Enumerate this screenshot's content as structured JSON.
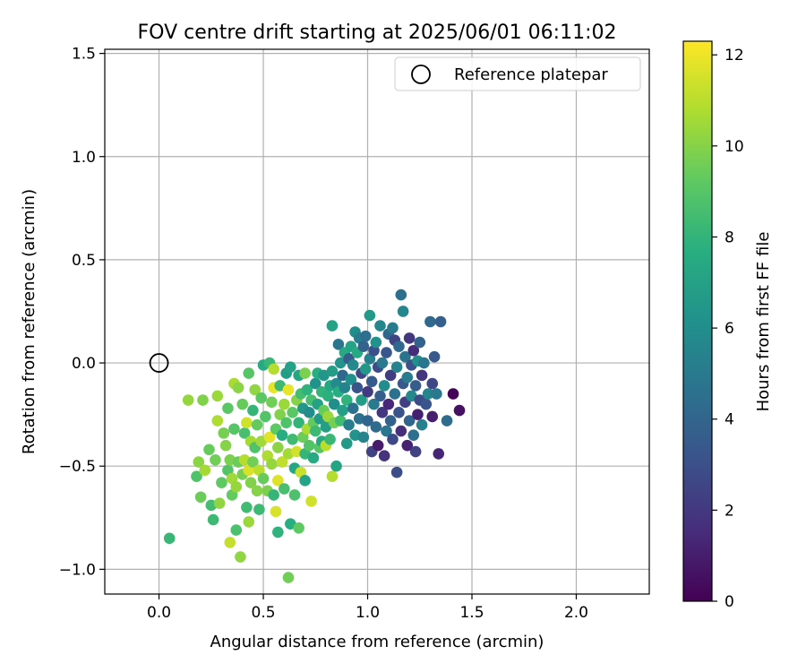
{
  "chart_data": {
    "type": "scatter",
    "title": "FOV centre drift starting at 2025/06/01 06:11:02",
    "xlabel": "Angular distance from reference (arcmin)",
    "ylabel": "Rotation from reference (arcmin)",
    "xlim": [
      -0.26,
      2.35
    ],
    "ylim": [
      -1.12,
      1.52
    ],
    "xticks": [
      0.0,
      0.5,
      1.0,
      1.5,
      2.0
    ],
    "xtick_labels": [
      "0.0",
      "0.5",
      "1.0",
      "1.5",
      "2.0"
    ],
    "yticks": [
      -1.0,
      -0.5,
      0.0,
      0.5,
      1.0,
      1.5
    ],
    "ytick_labels": [
      "−1.0",
      "−0.5",
      "0.0",
      "0.5",
      "1.0",
      "1.5"
    ],
    "grid": true,
    "legend": {
      "position": "top-right",
      "entries": [
        "Reference platepar"
      ]
    },
    "reference": {
      "x": 0.0,
      "y": 0.0
    },
    "colorbar": {
      "label": "Hours from first FF file",
      "min": 0,
      "max": 12.3,
      "ticks": [
        0,
        2,
        4,
        6,
        8,
        10,
        12
      ],
      "colormap": "viridis"
    },
    "points": [
      [
        0.05,
        -0.85,
        8.2
      ],
      [
        0.14,
        -0.18,
        10.3
      ],
      [
        0.18,
        -0.55,
        8.8
      ],
      [
        0.19,
        -0.48,
        10.1
      ],
      [
        0.2,
        -0.65,
        9.5
      ],
      [
        0.21,
        -0.18,
        9.9
      ],
      [
        0.22,
        -0.52,
        10.6
      ],
      [
        0.24,
        -0.42,
        9.4
      ],
      [
        0.25,
        -0.69,
        8.5
      ],
      [
        0.26,
        -0.76,
        8.3
      ],
      [
        0.27,
        -0.47,
        9.6
      ],
      [
        0.28,
        -0.28,
        10.8
      ],
      [
        0.28,
        -0.16,
        10.4
      ],
      [
        0.29,
        -0.68,
        10.2
      ],
      [
        0.3,
        -0.58,
        9.2
      ],
      [
        0.31,
        -0.34,
        9.7
      ],
      [
        0.32,
        -0.4,
        10.0
      ],
      [
        0.33,
        -0.52,
        8.9
      ],
      [
        0.33,
        -0.22,
        9.1
      ],
      [
        0.34,
        -0.87,
        11.2
      ],
      [
        0.34,
        -0.47,
        9.8
      ],
      [
        0.35,
        -0.64,
        9.3
      ],
      [
        0.35,
        -0.56,
        10.5
      ],
      [
        0.36,
        -0.1,
        10.7
      ],
      [
        0.36,
        -0.32,
        9.0
      ],
      [
        0.37,
        -0.81,
        8.7
      ],
      [
        0.37,
        -0.6,
        10.3
      ],
      [
        0.38,
        -0.48,
        9.5
      ],
      [
        0.38,
        -0.12,
        10.1
      ],
      [
        0.39,
        -0.94,
        10.2
      ],
      [
        0.4,
        -0.54,
        9.7
      ],
      [
        0.4,
        -0.2,
        9.4
      ],
      [
        0.41,
        -0.34,
        8.6
      ],
      [
        0.41,
        -0.47,
        10.9
      ],
      [
        0.42,
        -0.7,
        8.4
      ],
      [
        0.42,
        -0.29,
        11.4
      ],
      [
        0.43,
        -0.77,
        10.4
      ],
      [
        0.43,
        -0.52,
        11.6
      ],
      [
        0.43,
        -0.05,
        9.0
      ],
      [
        0.44,
        -0.38,
        10.6
      ],
      [
        0.44,
        -0.58,
        9.9
      ],
      [
        0.45,
        -0.23,
        8.1
      ],
      [
        0.45,
        -0.48,
        9.6
      ],
      [
        0.46,
        -0.13,
        10.2
      ],
      [
        0.46,
        -0.41,
        8.8
      ],
      [
        0.47,
        -0.62,
        10.0
      ],
      [
        0.47,
        -0.3,
        9.3
      ],
      [
        0.48,
        -0.71,
        8.3
      ],
      [
        0.48,
        -0.52,
        11.0
      ],
      [
        0.49,
        -0.17,
        9.1
      ],
      [
        0.49,
        -0.38,
        10.5
      ],
      [
        0.5,
        -0.01,
        7.5
      ],
      [
        0.5,
        -0.56,
        9.4
      ],
      [
        0.51,
        -0.26,
        8.9
      ],
      [
        0.52,
        -0.45,
        10.8
      ],
      [
        0.52,
        -0.62,
        9.8
      ],
      [
        0.53,
        -0.36,
        11.8
      ],
      [
        0.53,
        0.0,
        8.2
      ],
      [
        0.54,
        -0.19,
        9.6
      ],
      [
        0.54,
        -0.49,
        10.3
      ],
      [
        0.55,
        -0.12,
        11.9
      ],
      [
        0.55,
        -0.64,
        8.1
      ],
      [
        0.55,
        -0.03,
        10.9
      ],
      [
        0.56,
        -0.32,
        9.2
      ],
      [
        0.56,
        -0.72,
        11.6
      ],
      [
        0.57,
        -0.82,
        7.9
      ],
      [
        0.57,
        -0.41,
        10.1
      ],
      [
        0.57,
        -0.57,
        11.7
      ],
      [
        0.58,
        -0.11,
        8.3
      ],
      [
        0.58,
        -0.25,
        9.9
      ],
      [
        0.59,
        -0.48,
        11.1
      ],
      [
        0.59,
        -0.35,
        7.6
      ],
      [
        0.6,
        -0.61,
        8.6
      ],
      [
        0.6,
        -0.2,
        10.4
      ],
      [
        0.61,
        -0.05,
        6.8
      ],
      [
        0.61,
        -0.29,
        8.8
      ],
      [
        0.62,
        -1.04,
        9.6
      ],
      [
        0.62,
        -0.44,
        10.6
      ],
      [
        0.62,
        -0.13,
        11.9
      ],
      [
        0.63,
        -0.78,
        7.7
      ],
      [
        0.63,
        -0.02,
        7.0
      ],
      [
        0.64,
        -0.37,
        8.4
      ],
      [
        0.64,
        -0.24,
        9.1
      ],
      [
        0.65,
        -0.64,
        8.7
      ],
      [
        0.65,
        -0.51,
        7.3
      ],
      [
        0.66,
        -0.18,
        10.0
      ],
      [
        0.66,
        -0.43,
        11.5
      ],
      [
        0.67,
        -0.8,
        9.2
      ],
      [
        0.67,
        -0.29,
        8.0
      ],
      [
        0.67,
        -0.06,
        7.2
      ],
      [
        0.68,
        -0.53,
        11.3
      ],
      [
        0.68,
        -0.15,
        8.5
      ],
      [
        0.69,
        -0.36,
        9.5
      ],
      [
        0.69,
        -0.22,
        6.5
      ],
      [
        0.7,
        -0.44,
        8.1
      ],
      [
        0.7,
        -0.57,
        7.1
      ],
      [
        0.7,
        -0.05,
        9.8
      ],
      [
        0.71,
        -0.32,
        10.7
      ],
      [
        0.71,
        -0.13,
        7.9
      ],
      [
        0.72,
        -0.4,
        8.9
      ],
      [
        0.72,
        -0.24,
        5.9
      ],
      [
        0.73,
        -0.67,
        11.4
      ],
      [
        0.73,
        -0.18,
        8.6
      ],
      [
        0.74,
        -0.29,
        9.3
      ],
      [
        0.74,
        -0.46,
        7.5
      ],
      [
        0.75,
        -0.1,
        6.2
      ],
      [
        0.75,
        -0.33,
        8.3
      ],
      [
        0.76,
        -0.2,
        7.0
      ],
      [
        0.76,
        -0.05,
        7.7
      ],
      [
        0.77,
        -0.41,
        9.0
      ],
      [
        0.77,
        -0.27,
        6.7
      ],
      [
        0.78,
        -0.14,
        8.0
      ],
      [
        0.78,
        -0.38,
        7.4
      ],
      [
        0.79,
        -0.06,
        6.4
      ],
      [
        0.79,
        -0.23,
        9.4
      ],
      [
        0.8,
        -0.4,
        11.0
      ],
      [
        0.8,
        -0.31,
        6.9
      ],
      [
        0.81,
        -0.16,
        7.8
      ],
      [
        0.81,
        -0.26,
        10.4
      ],
      [
        0.82,
        -0.11,
        7.3
      ],
      [
        0.82,
        -0.37,
        8.2
      ],
      [
        0.83,
        -0.55,
        10.9
      ],
      [
        0.83,
        -0.04,
        6.8
      ],
      [
        0.83,
        0.18,
        7.0
      ],
      [
        0.84,
        -0.2,
        6.0
      ],
      [
        0.84,
        -0.29,
        9.7
      ],
      [
        0.85,
        -0.5,
        7.2
      ],
      [
        0.85,
        -0.1,
        5.8
      ],
      [
        0.86,
        0.09,
        4.8
      ],
      [
        0.86,
        -0.14,
        7.6
      ],
      [
        0.87,
        -0.28,
        8.4
      ],
      [
        0.87,
        0.0,
        6.3
      ],
      [
        0.88,
        -0.06,
        4.2
      ],
      [
        0.88,
        -0.23,
        6.9
      ],
      [
        0.89,
        0.05,
        7.4
      ],
      [
        0.89,
        -0.12,
        5.4
      ],
      [
        0.9,
        -0.39,
        6.6
      ],
      [
        0.9,
        -0.18,
        7.9
      ],
      [
        0.91,
        0.02,
        3.6
      ],
      [
        0.91,
        -0.3,
        5.2
      ],
      [
        0.92,
        -0.08,
        6.1
      ],
      [
        0.92,
        0.08,
        7.1
      ],
      [
        0.93,
        -0.22,
        4.5
      ],
      [
        0.93,
        -0.01,
        5.7
      ],
      [
        0.94,
        -0.35,
        6.3
      ],
      [
        0.94,
        0.15,
        6.0
      ],
      [
        0.95,
        -0.12,
        3.2
      ],
      [
        0.95,
        0.05,
        7.5
      ],
      [
        0.96,
        -0.27,
        4.6
      ],
      [
        0.96,
        0.12,
        5.1
      ],
      [
        0.97,
        -0.05,
        2.6
      ],
      [
        0.97,
        -0.18,
        6.8
      ],
      [
        0.98,
        0.08,
        3.9
      ],
      [
        0.98,
        -0.36,
        5.5
      ],
      [
        0.99,
        -0.03,
        6.5
      ],
      [
        0.99,
        0.13,
        4.4
      ],
      [
        1.0,
        -0.14,
        2.1
      ],
      [
        1.0,
        -0.28,
        4.0
      ],
      [
        1.01,
        0.23,
        6.6
      ],
      [
        1.01,
        0.02,
        5.3
      ],
      [
        1.02,
        -0.09,
        3.5
      ],
      [
        1.02,
        -0.43,
        2.4
      ],
      [
        1.03,
        -0.2,
        5.0
      ],
      [
        1.03,
        0.06,
        3.0
      ],
      [
        1.04,
        -0.31,
        4.3
      ],
      [
        1.04,
        0.1,
        6.2
      ],
      [
        1.05,
        -0.4,
        0.9
      ],
      [
        1.05,
        -0.02,
        2.8
      ],
      [
        1.06,
        0.18,
        5.6
      ],
      [
        1.06,
        -0.16,
        3.7
      ],
      [
        1.07,
        -0.24,
        2.0
      ],
      [
        1.07,
        0.0,
        4.9
      ],
      [
        1.08,
        -0.45,
        1.8
      ],
      [
        1.08,
        -0.11,
        5.9
      ],
      [
        1.09,
        0.05,
        3.3
      ],
      [
        1.09,
        -0.33,
        4.8
      ],
      [
        1.1,
        -0.2,
        1.4
      ],
      [
        1.1,
        0.14,
        4.1
      ],
      [
        1.11,
        -0.06,
        2.2
      ],
      [
        1.11,
        -0.28,
        3.8
      ],
      [
        1.12,
        0.17,
        5.0
      ],
      [
        1.12,
        -0.37,
        2.7
      ],
      [
        1.13,
        -0.15,
        4.6
      ],
      [
        1.13,
        0.11,
        2.5
      ],
      [
        1.14,
        -0.53,
        2.9
      ],
      [
        1.14,
        -0.02,
        5.4
      ],
      [
        1.15,
        -0.24,
        3.1
      ],
      [
        1.15,
        0.08,
        4.2
      ],
      [
        1.16,
        -0.33,
        1.6
      ],
      [
        1.16,
        0.33,
        4.5
      ],
      [
        1.17,
        -0.1,
        3.4
      ],
      [
        1.17,
        0.25,
        5.6
      ],
      [
        1.18,
        -0.19,
        2.3
      ],
      [
        1.18,
        0.03,
        4.7
      ],
      [
        1.19,
        -0.4,
        1.2
      ],
      [
        1.19,
        -0.07,
        5.1
      ],
      [
        1.2,
        0.12,
        2.0
      ],
      [
        1.2,
        -0.28,
        4.0
      ],
      [
        1.21,
        -0.01,
        3.0
      ],
      [
        1.21,
        -0.16,
        5.7
      ],
      [
        1.22,
        0.06,
        1.5
      ],
      [
        1.22,
        -0.35,
        4.4
      ],
      [
        1.23,
        -0.43,
        2.4
      ],
      [
        1.23,
        -0.11,
        3.6
      ],
      [
        1.24,
        -0.25,
        1.1
      ],
      [
        1.24,
        0.01,
        6.1
      ],
      [
        1.25,
        -0.18,
        2.8
      ],
      [
        1.25,
        0.1,
        3.9
      ],
      [
        1.26,
        -0.3,
        5.3
      ],
      [
        1.26,
        -0.06,
        1.9
      ],
      [
        1.27,
        0.0,
        4.8
      ],
      [
        1.28,
        -0.2,
        3.2
      ],
      [
        1.29,
        -0.15,
        5.5
      ],
      [
        1.3,
        0.2,
        4.2
      ],
      [
        1.31,
        -0.26,
        1.0
      ],
      [
        1.31,
        -0.1,
        2.6
      ],
      [
        1.32,
        0.03,
        3.4
      ],
      [
        1.33,
        -0.15,
        4.9
      ],
      [
        1.34,
        -0.44,
        1.3
      ],
      [
        1.35,
        0.2,
        3.7
      ],
      [
        1.38,
        -0.28,
        4.3
      ],
      [
        1.41,
        -0.15,
        0.1
      ],
      [
        1.44,
        -0.23,
        0.6
      ]
    ]
  }
}
